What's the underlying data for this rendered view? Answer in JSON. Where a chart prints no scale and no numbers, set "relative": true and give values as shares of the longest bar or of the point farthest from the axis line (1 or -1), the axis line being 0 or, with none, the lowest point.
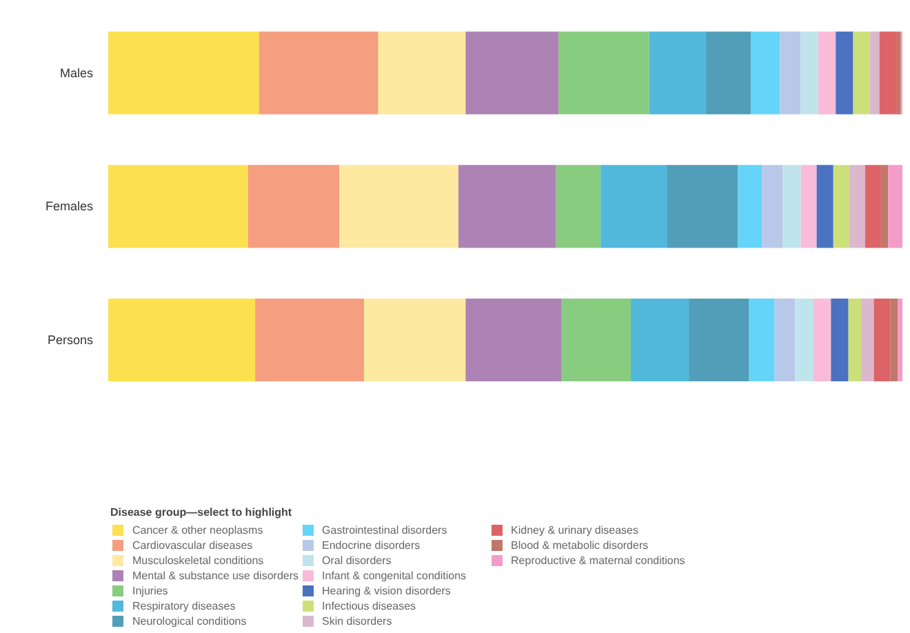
{
  "chart_data": {
    "type": "bar",
    "orientation": "horizontal",
    "stacked": true,
    "relative": true,
    "grid": false,
    "legend": "bottom",
    "legend_title": "Disease group—select to highlight",
    "categories": [
      "Males",
      "Females",
      "Persons"
    ],
    "series": [
      {
        "name": "Cancer & other neoplasms",
        "color": "#fde050",
        "values": [
          0.19,
          0.176,
          0.185
        ]
      },
      {
        "name": "Cardiovascular diseases",
        "color": "#f59e80",
        "values": [
          0.15,
          0.115,
          0.137
        ]
      },
      {
        "name": "Musculoskeletal conditions",
        "color": "#fdeaa0",
        "values": [
          0.11,
          0.15,
          0.128
        ]
      },
      {
        "name": "Mental & substance use disorders",
        "color": "#ad82b4",
        "values": [
          0.117,
          0.123,
          0.121
        ]
      },
      {
        "name": "Injuries",
        "color": "#88cc80",
        "values": [
          0.114,
          0.056,
          0.087
        ]
      },
      {
        "name": "Respiratory diseases",
        "color": "#52b8dc",
        "values": [
          0.071,
          0.084,
          0.073
        ]
      },
      {
        "name": "Neurological conditions",
        "color": "#529eb8",
        "values": [
          0.057,
          0.089,
          0.076
        ]
      },
      {
        "name": "Gastrointestinal disorders",
        "color": "#64d4f8",
        "values": [
          0.037,
          0.03,
          0.032
        ]
      },
      {
        "name": "Endocrine disorders",
        "color": "#b8c8e8",
        "values": [
          0.026,
          0.026,
          0.026
        ]
      },
      {
        "name": "Oral disorders",
        "color": "#c0e4ec",
        "values": [
          0.022,
          0.023,
          0.023
        ]
      },
      {
        "name": "Infant & congenital conditions",
        "color": "#f8bcd8",
        "values": [
          0.022,
          0.02,
          0.022
        ]
      },
      {
        "name": "Hearing & vision disorders",
        "color": "#4a72c0",
        "values": [
          0.022,
          0.021,
          0.022
        ]
      },
      {
        "name": "Infectious diseases",
        "color": "#cce07a",
        "values": [
          0.021,
          0.02,
          0.016
        ]
      },
      {
        "name": "Skin disorders",
        "color": "#dcb8cc",
        "values": [
          0.012,
          0.02,
          0.016
        ]
      },
      {
        "name": "Kidney & urinary diseases",
        "color": "#dc6466",
        "values": [
          0.022,
          0.02,
          0.021
        ]
      },
      {
        "name": "Blood & metabolic disorders",
        "color": "#c0786a",
        "values": [
          0.005,
          0.009,
          0.009
        ]
      },
      {
        "name": "Reproductive & maternal conditions",
        "color": "#f49cc8",
        "values": [
          0.002,
          0.018,
          0.006
        ]
      }
    ]
  }
}
